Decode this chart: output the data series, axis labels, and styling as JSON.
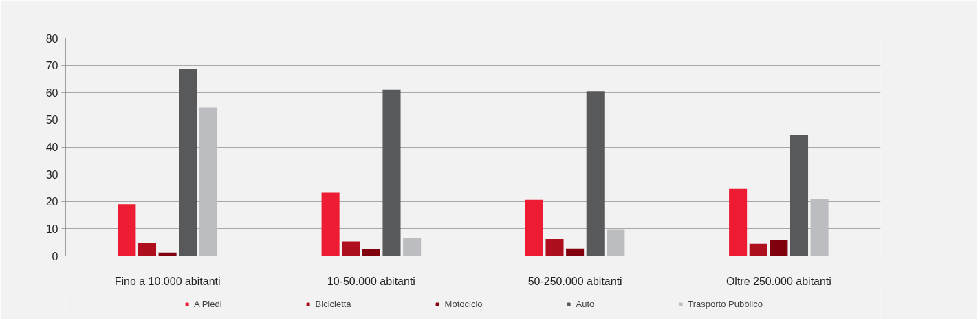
{
  "chart_data": {
    "type": "bar",
    "categories": [
      "Fino a 10.000 abitanti",
      "10-50.000 abitanti",
      "50-250.000 abitanti",
      "Oltre 250.000 abitanti"
    ],
    "series": [
      {
        "name": "A Piedi",
        "color": "#ed1c33",
        "values": [
          19,
          23.2,
          20.6,
          24.7
        ]
      },
      {
        "name": "Bicicletta",
        "color": "#af0e1f",
        "values": [
          4.7,
          5.3,
          6.2,
          4.5
        ]
      },
      {
        "name": "Motociclo",
        "color": "#80000e",
        "values": [
          1.2,
          2.4,
          2.7,
          5.8
        ]
      },
      {
        "name": "Auto",
        "color": "#58595b",
        "values": [
          68.7,
          61,
          60.4,
          44.5
        ]
      },
      {
        "name": "Trasporto Pubblico",
        "color": "#bcbdc0",
        "values": [
          54.5,
          6.6,
          9.6,
          20.8
        ]
      }
    ],
    "ylim": [
      0,
      80
    ],
    "yticks": [
      0,
      10,
      20,
      30,
      40,
      50,
      60,
      70,
      80
    ],
    "grid": "y",
    "legend": "bottom"
  }
}
